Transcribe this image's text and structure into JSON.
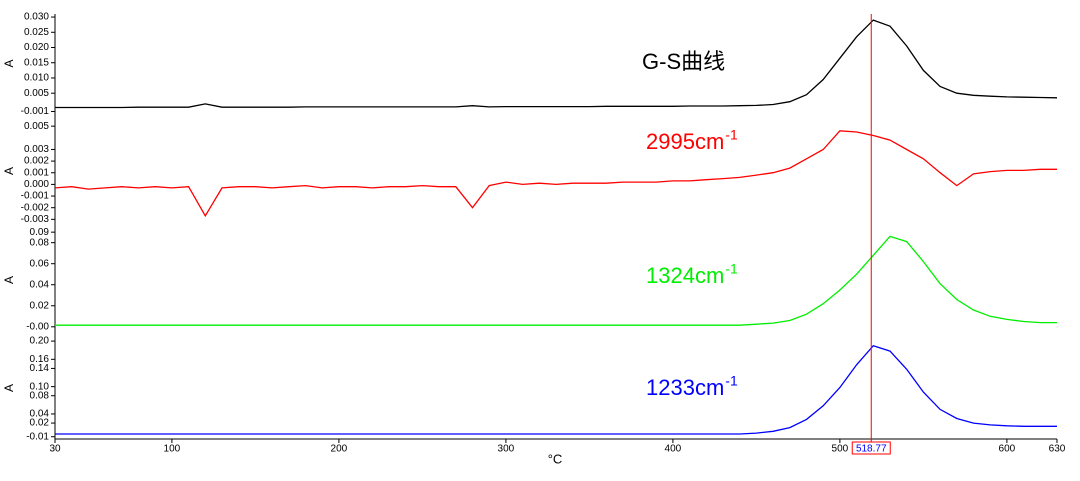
{
  "chart_data": [
    {
      "type": "line",
      "ylabel": "A",
      "color": "#000000",
      "annotation": {
        "text": "G-S曲线"
      },
      "xlim": [
        30,
        630
      ],
      "ylim": [
        -0.0015,
        0.031
      ],
      "yticks": [
        {
          "value": 0.03,
          "label": "0.030"
        },
        0.025,
        {
          "value": 0.02,
          "label": "0.020"
        },
        0.015,
        {
          "value": 0.01,
          "label": "0.010"
        },
        0.005,
        -0.001
      ],
      "x": [
        30,
        40,
        50,
        60,
        70,
        80,
        90,
        100,
        110,
        120,
        130,
        140,
        150,
        160,
        170,
        180,
        190,
        200,
        210,
        220,
        230,
        240,
        250,
        260,
        270,
        280,
        290,
        300,
        310,
        320,
        330,
        340,
        350,
        360,
        370,
        380,
        390,
        400,
        410,
        420,
        430,
        440,
        450,
        460,
        470,
        480,
        490,
        500,
        510,
        520,
        530,
        540,
        550,
        560,
        570,
        580,
        590,
        600,
        610,
        620,
        630
      ],
      "values": [
        0.0003,
        0.0003,
        0.0003,
        0.0003,
        0.0003,
        0.0004,
        0.0004,
        0.0004,
        0.0004,
        0.0015,
        0.0004,
        0.0004,
        0.0004,
        0.0004,
        0.0004,
        0.0005,
        0.0005,
        0.0005,
        0.0005,
        0.0005,
        0.0005,
        0.0005,
        0.0005,
        0.0005,
        0.0005,
        0.0009,
        0.0005,
        0.0006,
        0.0006,
        0.0006,
        0.0006,
        0.0006,
        0.0006,
        0.0007,
        0.0007,
        0.0007,
        0.0007,
        0.0007,
        0.0008,
        0.0008,
        0.0008,
        0.0009,
        0.001,
        0.0013,
        0.0022,
        0.0045,
        0.0095,
        0.0165,
        0.0235,
        0.029,
        0.027,
        0.0205,
        0.0125,
        0.0072,
        0.005,
        0.0043,
        0.004,
        0.0038,
        0.0037,
        0.0036,
        0.0035
      ]
    },
    {
      "type": "line",
      "ylabel": "A",
      "color": "#ff0000",
      "annotation": {
        "text": "2995cm",
        "superscript": "-1"
      },
      "xlim": [
        30,
        630
      ],
      "ylim": [
        -0.0034,
        0.0057
      ],
      "yticks": [
        0.005,
        0.003,
        0.002,
        0.001,
        {
          "value": 0,
          "label": "0.000"
        },
        -0.001,
        -0.002,
        -0.003
      ],
      "x": [
        30,
        40,
        50,
        60,
        70,
        80,
        90,
        100,
        110,
        120,
        130,
        140,
        150,
        160,
        170,
        180,
        190,
        200,
        210,
        220,
        230,
        240,
        250,
        260,
        270,
        280,
        290,
        300,
        310,
        320,
        330,
        340,
        350,
        360,
        370,
        380,
        390,
        400,
        410,
        420,
        430,
        440,
        450,
        460,
        470,
        480,
        490,
        500,
        510,
        520,
        530,
        540,
        550,
        560,
        570,
        580,
        590,
        600,
        610,
        620,
        630
      ],
      "values": [
        -0.0003,
        -0.0002,
        -0.0004,
        -0.0003,
        -0.0002,
        -0.0003,
        -0.0002,
        -0.0003,
        -0.0002,
        -0.0027,
        -0.0003,
        -0.0002,
        -0.0002,
        -0.0003,
        -0.0002,
        -0.0001,
        -0.0003,
        -0.0002,
        -0.0002,
        -0.0003,
        -0.0002,
        -0.0002,
        -0.0001,
        -0.0002,
        -0.0002,
        -0.002,
        -0.0001,
        0.0002,
        0,
        0.0001,
        0,
        0.0001,
        0.0001,
        0.0001,
        0.0002,
        0.0002,
        0.0002,
        0.0003,
        0.0003,
        0.0004,
        0.0005,
        0.0006,
        0.0008,
        0.001,
        0.0014,
        0.0022,
        0.003,
        0.0046,
        0.0045,
        0.0042,
        0.0038,
        0.003,
        0.0022,
        0.001,
        -0.0001,
        0.0009,
        0.0011,
        0.0012,
        0.0012,
        0.0013,
        0.0013
      ]
    },
    {
      "type": "line",
      "ylabel": "A",
      "color": "#00ee00",
      "annotation": {
        "text": "1324cm",
        "superscript": "-1"
      },
      "xlim": [
        30,
        630
      ],
      "ylim": [
        -0.004,
        0.093
      ],
      "yticks": [
        0.09,
        0.08,
        0.06,
        0.04,
        0.02,
        {
          "value": 0,
          "label": "-0.00"
        }
      ],
      "x": [
        30,
        40,
        50,
        60,
        70,
        80,
        90,
        100,
        110,
        120,
        130,
        140,
        150,
        160,
        170,
        180,
        190,
        200,
        210,
        220,
        230,
        240,
        250,
        260,
        270,
        280,
        290,
        300,
        310,
        320,
        330,
        340,
        350,
        360,
        370,
        380,
        390,
        400,
        410,
        420,
        430,
        440,
        450,
        460,
        470,
        480,
        490,
        500,
        510,
        520,
        530,
        540,
        550,
        560,
        570,
        580,
        590,
        600,
        610,
        620,
        630
      ],
      "values": [
        0.0015,
        0.0015,
        0.0015,
        0.0015,
        0.0015,
        0.0015,
        0.0015,
        0.0015,
        0.0015,
        0.0015,
        0.0015,
        0.0015,
        0.0015,
        0.0015,
        0.0015,
        0.0015,
        0.0015,
        0.0015,
        0.0015,
        0.0015,
        0.0015,
        0.0015,
        0.0015,
        0.0015,
        0.0015,
        0.0015,
        0.0015,
        0.0015,
        0.0015,
        0.0015,
        0.0015,
        0.0015,
        0.0015,
        0.0015,
        0.0015,
        0.0015,
        0.0015,
        0.0015,
        0.0015,
        0.0015,
        0.0015,
        0.0015,
        0.0025,
        0.0035,
        0.006,
        0.012,
        0.022,
        0.035,
        0.05,
        0.068,
        0.086,
        0.081,
        0.062,
        0.041,
        0.026,
        0.016,
        0.01,
        0.007,
        0.005,
        0.004,
        0.004
      ]
    },
    {
      "type": "line",
      "ylabel": "A",
      "color": "#0000ff",
      "annotation": {
        "text": "1233cm",
        "superscript": "-1"
      },
      "xlim": [
        30,
        630
      ],
      "ylim": [
        -0.015,
        0.209
      ],
      "yticks": [
        {
          "value": 0.2,
          "label": "0.20"
        },
        0.16,
        0.14,
        {
          "value": 0.1,
          "label": "0.10"
        },
        0.08,
        0.04,
        0.02,
        -0.01
      ],
      "xticks": [
        30,
        100,
        200,
        300,
        400,
        500,
        600,
        630
      ],
      "xlabel": "°C",
      "cursor": 518.77,
      "x": [
        30,
        40,
        50,
        60,
        70,
        80,
        90,
        100,
        110,
        120,
        130,
        140,
        150,
        160,
        170,
        180,
        190,
        200,
        210,
        220,
        230,
        240,
        250,
        260,
        270,
        280,
        290,
        300,
        310,
        320,
        330,
        340,
        350,
        360,
        370,
        380,
        390,
        400,
        410,
        420,
        430,
        440,
        450,
        460,
        470,
        480,
        490,
        500,
        510,
        520,
        530,
        540,
        550,
        560,
        570,
        580,
        590,
        600,
        610,
        620,
        630
      ],
      "values": [
        -0.004,
        -0.004,
        -0.004,
        -0.004,
        -0.004,
        -0.004,
        -0.004,
        -0.004,
        -0.004,
        -0.004,
        -0.004,
        -0.004,
        -0.004,
        -0.004,
        -0.004,
        -0.004,
        -0.004,
        -0.004,
        -0.004,
        -0.004,
        -0.004,
        -0.004,
        -0.004,
        -0.004,
        -0.004,
        -0.004,
        -0.004,
        -0.004,
        -0.004,
        -0.004,
        -0.004,
        -0.004,
        -0.004,
        -0.004,
        -0.004,
        -0.004,
        -0.004,
        -0.004,
        -0.004,
        -0.004,
        -0.004,
        -0.004,
        -0.002,
        0.002,
        0.01,
        0.028,
        0.058,
        0.098,
        0.148,
        0.19,
        0.178,
        0.138,
        0.088,
        0.05,
        0.03,
        0.02,
        0.016,
        0.014,
        0.013,
        0.013,
        0.013
      ]
    }
  ]
}
